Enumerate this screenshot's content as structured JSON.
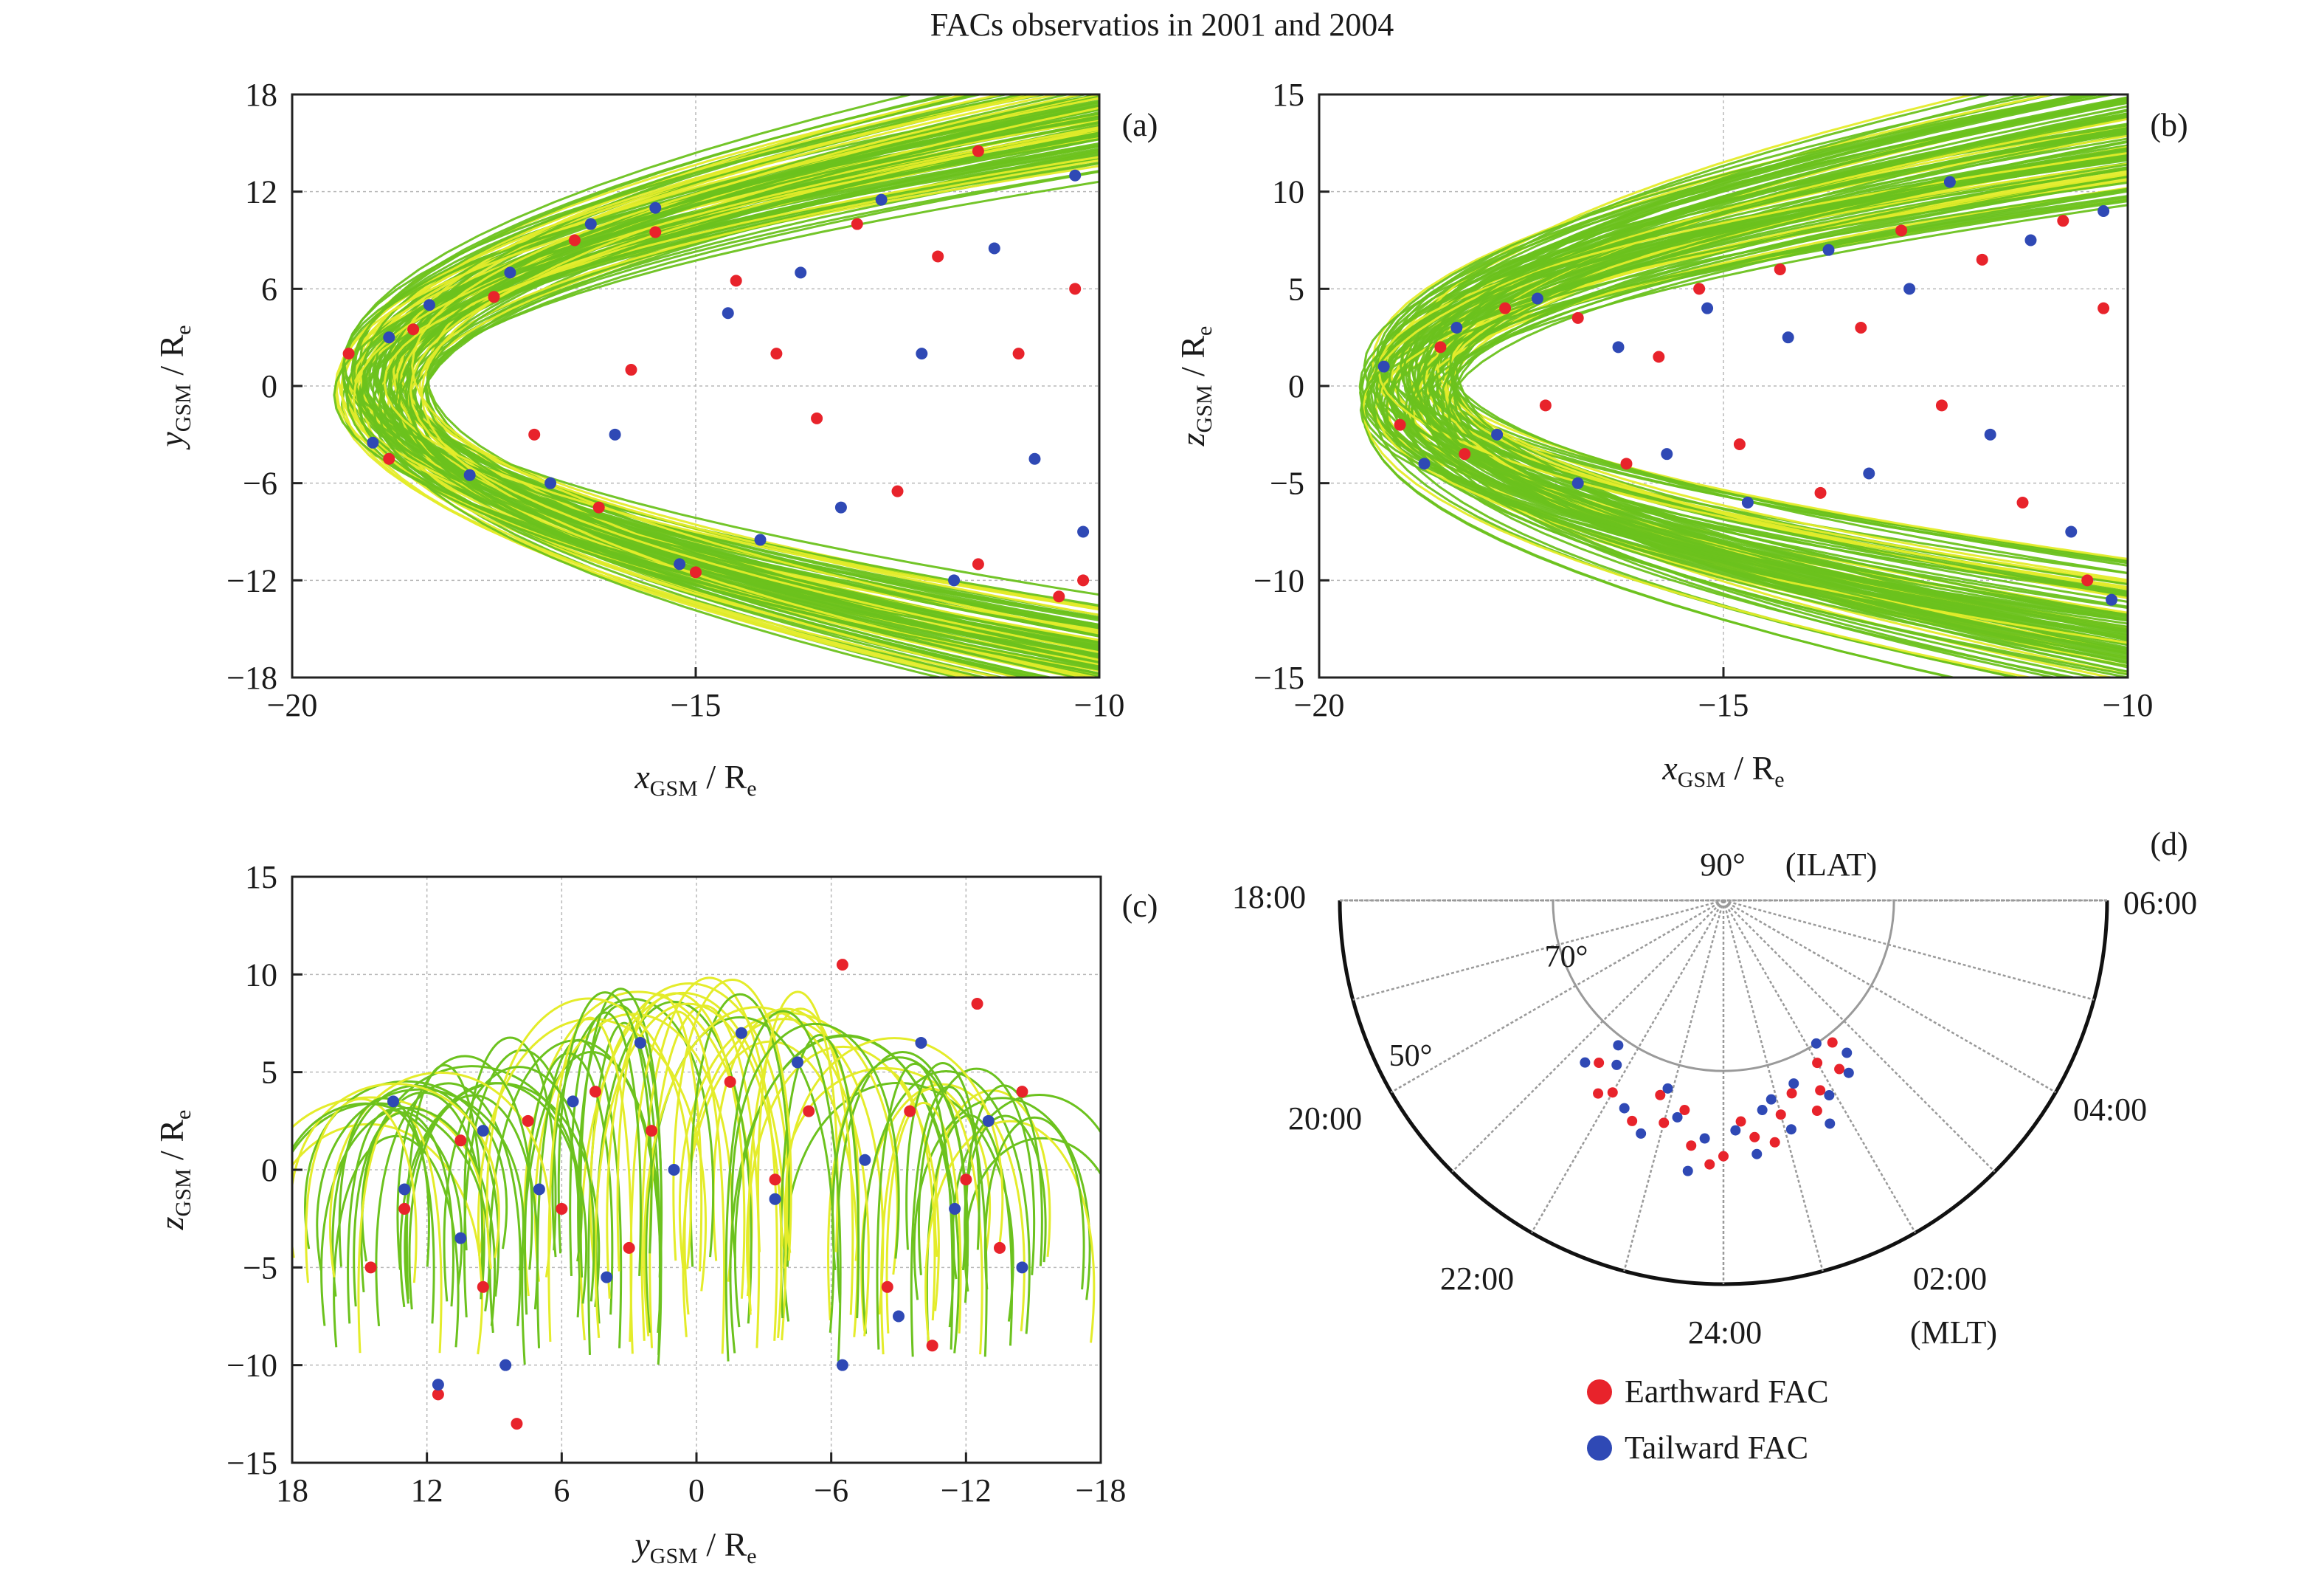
{
  "title": "FACs observatios in 2001 and 2004",
  "colors": {
    "earthward": "#e8232b",
    "tailward": "#2f49b5",
    "orbit_green": "#6cc21e",
    "orbit_yellow": "#e4ec2a"
  },
  "panels": {
    "a": {
      "label": "(a)",
      "xlabel_main": "x",
      "xlabel_sub": "GSM",
      "xlabel_tail": " / R",
      "xlabel_tail_sub": "e",
      "ylabel_main": "y",
      "ylabel_sub": "GSM",
      "ylabel_tail": " / R",
      "ylabel_tail_sub": "e",
      "xticks": [
        "−20",
        "−15",
        "−10"
      ],
      "yticks": [
        "18",
        "12",
        "6",
        "0",
        "−6",
        "−12",
        "−18"
      ]
    },
    "b": {
      "label": "(b)",
      "xlabel_main": "x",
      "xlabel_sub": "GSM",
      "xlabel_tail": " / R",
      "xlabel_tail_sub": "e",
      "ylabel_main": "z",
      "ylabel_sub": "GSM",
      "ylabel_tail": " / R",
      "ylabel_tail_sub": "e",
      "xticks": [
        "−20",
        "−15",
        "−10"
      ],
      "yticks": [
        "15",
        "10",
        "5",
        "0",
        "−5",
        "−10",
        "−15"
      ]
    },
    "c": {
      "label": "(c)",
      "xlabel_main": "y",
      "xlabel_sub": "GSM",
      "xlabel_tail": " / R",
      "xlabel_tail_sub": "e",
      "ylabel_main": "z",
      "ylabel_sub": "GSM",
      "ylabel_tail": " / R",
      "ylabel_tail_sub": "e",
      "xticks": [
        "18",
        "12",
        "6",
        "0",
        "−6",
        "−12",
        "−18"
      ],
      "yticks": [
        "15",
        "10",
        "5",
        "0",
        "−5",
        "−10",
        "−15"
      ]
    },
    "d": {
      "label": "(d)",
      "center_label": "90°",
      "ilat_label": "(ILAT)",
      "mlt_label": "(MLT)",
      "lat70": "70°",
      "lat50": "50°",
      "times": {
        "t1800": "18:00",
        "t0600": "06:00",
        "t2000": "20:00",
        "t0400": "04:00",
        "t2200": "22:00",
        "t0200": "02:00",
        "t2400": "24:00"
      }
    }
  },
  "legend": [
    {
      "label": "Earthward FAC",
      "color": "#e8232b"
    },
    {
      "label": "Tailward FAC",
      "color": "#2f49b5"
    }
  ],
  "chart_data": [
    {
      "panel": "a",
      "type": "scatter",
      "xlabel": "xGSM / Re",
      "ylabel": "yGSM / Re",
      "xlim": [
        -20,
        -10
      ],
      "ylim": [
        -18,
        18
      ],
      "x_ticks": [
        -20,
        -15,
        -10
      ],
      "y_ticks": [
        18,
        12,
        6,
        0,
        -6,
        -12,
        -18
      ],
      "grid": true,
      "series": [
        {
          "name": "Earthward FAC",
          "points": [
            [
              -19.3,
              2.0
            ],
            [
              -18.8,
              -4.5
            ],
            [
              -18.5,
              3.5
            ],
            [
              -17.5,
              5.5
            ],
            [
              -17.0,
              -3.0
            ],
            [
              -16.5,
              9.0
            ],
            [
              -16.2,
              -7.5
            ],
            [
              -15.8,
              1.0
            ],
            [
              -15.5,
              9.5
            ],
            [
              -15.0,
              -11.5
            ],
            [
              -14.5,
              6.5
            ],
            [
              -14.0,
              2.0
            ],
            [
              -13.5,
              -2.0
            ],
            [
              -13.0,
              10.0
            ],
            [
              -12.5,
              -6.5
            ],
            [
              -12.0,
              8.0
            ],
            [
              -11.5,
              14.5
            ],
            [
              -11.5,
              -11.0
            ],
            [
              -11.0,
              2.0
            ],
            [
              -10.5,
              -13.0
            ],
            [
              -10.3,
              6.0
            ],
            [
              -10.2,
              -12.0
            ]
          ]
        },
        {
          "name": "Tailward FAC",
          "points": [
            [
              -19.0,
              -3.5
            ],
            [
              -18.8,
              3.0
            ],
            [
              -18.3,
              5.0
            ],
            [
              -17.8,
              -5.5
            ],
            [
              -17.3,
              7.0
            ],
            [
              -16.8,
              -6.0
            ],
            [
              -16.3,
              10.0
            ],
            [
              -16.0,
              -3.0
            ],
            [
              -15.5,
              11.0
            ],
            [
              -15.2,
              -11.0
            ],
            [
              -14.6,
              4.5
            ],
            [
              -14.2,
              -9.5
            ],
            [
              -13.7,
              7.0
            ],
            [
              -13.2,
              -7.5
            ],
            [
              -12.7,
              11.5
            ],
            [
              -12.2,
              2.0
            ],
            [
              -11.8,
              -12.0
            ],
            [
              -11.3,
              8.5
            ],
            [
              -10.8,
              -4.5
            ],
            [
              -10.3,
              13.0
            ],
            [
              -10.2,
              -9.0
            ]
          ]
        }
      ]
    },
    {
      "panel": "b",
      "type": "scatter",
      "xlabel": "xGSM / Re",
      "ylabel": "zGSM / Re",
      "xlim": [
        -20,
        -10
      ],
      "ylim": [
        -15,
        15
      ],
      "x_ticks": [
        -20,
        -15,
        -10
      ],
      "y_ticks": [
        15,
        10,
        5,
        0,
        -5,
        -10,
        -15
      ],
      "grid": true,
      "series": [
        {
          "name": "Earthward FAC",
          "points": [
            [
              -19.0,
              -2.0
            ],
            [
              -18.5,
              2.0
            ],
            [
              -18.2,
              -3.5
            ],
            [
              -17.7,
              4.0
            ],
            [
              -17.2,
              -1.0
            ],
            [
              -16.8,
              3.5
            ],
            [
              -16.2,
              -4.0
            ],
            [
              -15.8,
              1.5
            ],
            [
              -15.3,
              5.0
            ],
            [
              -14.8,
              -3.0
            ],
            [
              -14.3,
              6.0
            ],
            [
              -13.8,
              -5.5
            ],
            [
              -13.3,
              3.0
            ],
            [
              -12.8,
              8.0
            ],
            [
              -12.3,
              -1.0
            ],
            [
              -11.8,
              6.5
            ],
            [
              -11.3,
              -6.0
            ],
            [
              -10.8,
              8.5
            ],
            [
              -10.5,
              -10.0
            ],
            [
              -10.3,
              4.0
            ]
          ]
        },
        {
          "name": "Tailward FAC",
          "points": [
            [
              -19.2,
              1.0
            ],
            [
              -18.7,
              -4.0
            ],
            [
              -18.3,
              3.0
            ],
            [
              -17.8,
              -2.5
            ],
            [
              -17.3,
              4.5
            ],
            [
              -16.8,
              -5.0
            ],
            [
              -16.3,
              2.0
            ],
            [
              -15.7,
              -3.5
            ],
            [
              -15.2,
              4.0
            ],
            [
              -14.7,
              -6.0
            ],
            [
              -14.2,
              2.5
            ],
            [
              -13.7,
              7.0
            ],
            [
              -13.2,
              -4.5
            ],
            [
              -12.7,
              5.0
            ],
            [
              -12.2,
              10.5
            ],
            [
              -11.7,
              -2.5
            ],
            [
              -11.2,
              7.5
            ],
            [
              -10.7,
              -7.5
            ],
            [
              -10.3,
              9.0
            ],
            [
              -10.2,
              -11.0
            ]
          ]
        }
      ]
    },
    {
      "panel": "c",
      "type": "scatter",
      "xlabel": "yGSM / Re",
      "ylabel": "zGSM / Re",
      "xlim": [
        18,
        -18
      ],
      "ylim": [
        -15,
        15
      ],
      "x_ticks": [
        18,
        12,
        6,
        0,
        -6,
        -12,
        -18
      ],
      "y_ticks": [
        15,
        10,
        5,
        0,
        -5,
        -10,
        -15
      ],
      "grid": true,
      "series": [
        {
          "name": "Earthward FAC",
          "points": [
            [
              14.5,
              -5.0
            ],
            [
              13.0,
              -2.0
            ],
            [
              11.5,
              -11.5
            ],
            [
              10.5,
              1.5
            ],
            [
              9.5,
              -6.0
            ],
            [
              8.0,
              -13.0
            ],
            [
              7.5,
              2.5
            ],
            [
              6.0,
              -2.0
            ],
            [
              4.5,
              4.0
            ],
            [
              3.0,
              -4.0
            ],
            [
              2.0,
              2.0
            ],
            [
              -1.5,
              4.5
            ],
            [
              -3.5,
              -0.5
            ],
            [
              -5.0,
              3.0
            ],
            [
              -6.5,
              10.5
            ],
            [
              -8.5,
              -6.0
            ],
            [
              -9.5,
              3.0
            ],
            [
              -10.5,
              -9.0
            ],
            [
              -12.0,
              -0.5
            ],
            [
              -12.5,
              8.5
            ],
            [
              -13.5,
              -4.0
            ],
            [
              -14.5,
              4.0
            ]
          ]
        },
        {
          "name": "Tailward FAC",
          "points": [
            [
              13.5,
              3.5
            ],
            [
              13.0,
              -1.0
            ],
            [
              11.5,
              -11.0
            ],
            [
              10.5,
              -3.5
            ],
            [
              9.5,
              2.0
            ],
            [
              8.5,
              -10.0
            ],
            [
              7.0,
              -1.0
            ],
            [
              5.5,
              3.5
            ],
            [
              4.0,
              -5.5
            ],
            [
              2.5,
              6.5
            ],
            [
              1.0,
              0.0
            ],
            [
              -2.0,
              7.0
            ],
            [
              -3.5,
              -1.5
            ],
            [
              -4.5,
              5.5
            ],
            [
              -6.5,
              -10.0
            ],
            [
              -7.5,
              0.5
            ],
            [
              -9.0,
              -7.5
            ],
            [
              -10.0,
              6.5
            ],
            [
              -11.5,
              -2.0
            ],
            [
              -13.0,
              2.5
            ],
            [
              -14.5,
              -5.0
            ]
          ]
        }
      ]
    },
    {
      "panel": "d",
      "type": "scatter",
      "coordinate_system": "polar, ILAT (radial) vs MLT (angle), night-side half disk",
      "ilat_circles": [
        90,
        70,
        50
      ],
      "mlt_ticks": [
        "18:00",
        "20:00",
        "22:00",
        "24:00",
        "02:00",
        "04:00",
        "06:00"
      ],
      "series": [
        {
          "name": "Earthward FAC",
          "points": [
            [
              21.5,
              66
            ],
            [
              22.0,
              64
            ],
            [
              22.5,
              62
            ],
            [
              23.0,
              63
            ],
            [
              23.5,
              61
            ],
            [
              0.0,
              60
            ],
            [
              0.5,
              62
            ],
            [
              1.0,
              64
            ],
            [
              1.3,
              66
            ],
            [
              1.6,
              63
            ],
            [
              2.0,
              68
            ],
            [
              2.3,
              66
            ],
            [
              22.8,
              66
            ],
            [
              23.3,
              65
            ],
            [
              0.3,
              64
            ],
            [
              1.8,
              65
            ],
            [
              2.5,
              69
            ],
            [
              21.8,
              63
            ],
            [
              23.8,
              59
            ],
            [
              0.8,
              61
            ]
          ]
        },
        {
          "name": "Tailward FAC",
          "points": [
            [
              21.3,
              65
            ],
            [
              21.8,
              67
            ],
            [
              22.3,
              63
            ],
            [
              22.7,
              61
            ],
            [
              23.2,
              64
            ],
            [
              23.7,
              62
            ],
            [
              0.2,
              63
            ],
            [
              0.7,
              65
            ],
            [
              1.1,
              62
            ],
            [
              1.4,
              67
            ],
            [
              1.9,
              64
            ],
            [
              2.2,
              70
            ],
            [
              2.6,
              67
            ],
            [
              21.6,
              69
            ],
            [
              22.9,
              67
            ],
            [
              0.5,
              60
            ],
            [
              1.7,
              61
            ],
            [
              2.4,
              65
            ],
            [
              23.5,
              58
            ],
            [
              0.9,
              66
            ]
          ]
        }
      ]
    }
  ]
}
